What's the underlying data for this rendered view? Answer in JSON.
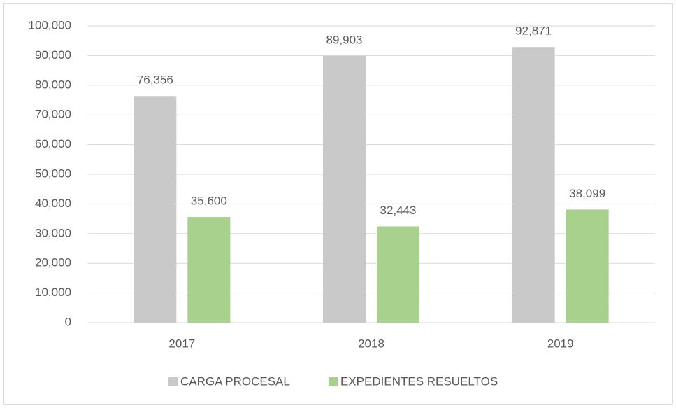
{
  "chart_data": {
    "type": "bar",
    "categories": [
      "2017",
      "2018",
      "2019"
    ],
    "series": [
      {
        "name": "CARGA PROCESAL",
        "color": "#c9c9c9",
        "values": [
          76356,
          89903,
          92871
        ],
        "value_labels": [
          "76,356",
          "89,903",
          "92,871"
        ]
      },
      {
        "name": "EXPEDIENTES RESUELTOS",
        "color": "#a9d18e",
        "values": [
          35600,
          32443,
          38099
        ],
        "value_labels": [
          "35,600",
          "32,443",
          "38,099"
        ]
      }
    ],
    "ylim": [
      0,
      100000
    ],
    "yticks": [
      0,
      {
        "value": 10000,
        "label": "10,000"
      },
      {
        "value": 20000,
        "label": "20,000"
      },
      {
        "value": 30000,
        "label": "30,000"
      },
      {
        "value": 40000,
        "label": "40,000"
      },
      {
        "value": 50000,
        "label": "50,000"
      },
      {
        "value": 60000,
        "label": "60,000"
      },
      {
        "value": 70000,
        "label": "70,000"
      },
      {
        "value": 80000,
        "label": "80,000"
      },
      {
        "value": 90000,
        "label": "90,000"
      },
      {
        "value": 100000,
        "label": "100,000"
      }
    ],
    "grid": true,
    "legend": "bottom"
  }
}
